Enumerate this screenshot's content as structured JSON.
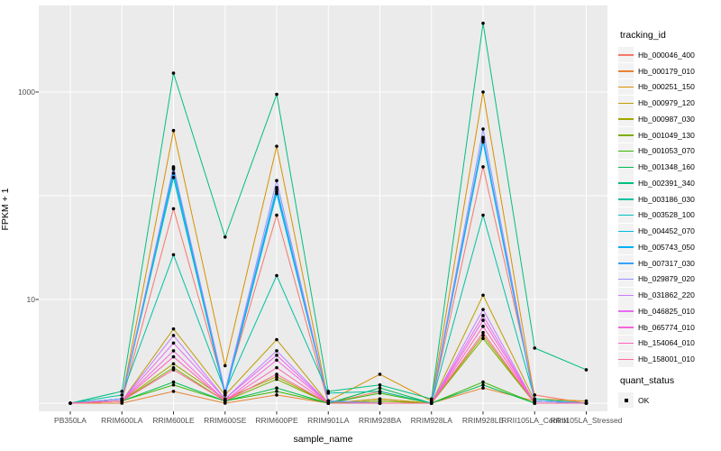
{
  "figure": {
    "y_axis": {
      "title": "FPKM + 1",
      "tick_labels": [
        "1000",
        "10"
      ]
    },
    "x_axis": {
      "title": "sample_name"
    },
    "legend": {
      "tracking_title": "tracking_id",
      "quant_title": "quant_status",
      "quant_ok_label": "OK"
    },
    "style": {
      "panel_bg": "#EBEBEB",
      "grid_color": "#FFFFFF",
      "axis_text_color": "#4D4D4D",
      "tick_mark_color": "#333333",
      "point_color": "#000000",
      "legend_key_bg": "#F2F2F2"
    }
  },
  "chart_data": {
    "type": "line",
    "title": "",
    "xlabel": "sample_name",
    "ylabel": "FPKM + 1",
    "y_scale": "log10",
    "ylim": [
      1,
      7000
    ],
    "y_ticks_labeled": [
      10,
      1000
    ],
    "y_gridlines": [
      1,
      10,
      100,
      1000
    ],
    "grid": true,
    "legend_title": "tracking_id",
    "legend_position": "right",
    "point_legend": {
      "title": "quant_status",
      "items": [
        "OK"
      ]
    },
    "categories": [
      "PB350LA",
      "RRIM600LA",
      "RRIM600LE",
      "RRIM600SE",
      "RRIM600PE",
      "RRIM901LA",
      "RRIM928BA",
      "RRIM928LA",
      "RRIM928LE",
      "RRII105LA_Control",
      "RRII105LA_Stressed"
    ],
    "series": [
      {
        "name": "Hb_000046_400",
        "color": "#F8766D",
        "values": [
          1,
          1.05,
          75,
          1.3,
          65,
          1,
          1.3,
          1,
          190,
          1.2,
          1
        ]
      },
      {
        "name": "Hb_000179_010",
        "color": "#EA8331",
        "values": [
          1,
          1,
          1.3,
          1,
          1.2,
          1,
          1.1,
          1,
          1.4,
          1.05,
          1
        ]
      },
      {
        "name": "Hb_000251_150",
        "color": "#D89000",
        "values": [
          1,
          1.1,
          425,
          2.3,
          300,
          1.05,
          1.9,
          1.05,
          1000,
          1.1,
          1.05
        ]
      },
      {
        "name": "Hb_000979_120",
        "color": "#C09B00",
        "values": [
          1,
          1.05,
          5.2,
          1.2,
          4.1,
          1,
          1.1,
          1,
          11,
          1.05,
          1
        ]
      },
      {
        "name": "Hb_000987_030",
        "color": "#A3A500",
        "values": [
          1,
          1.05,
          2.4,
          1.1,
          1.8,
          1,
          1.05,
          1,
          4.5,
          1,
          1
        ]
      },
      {
        "name": "Hb_001049_130",
        "color": "#7CAE00",
        "values": [
          1,
          1.05,
          2.2,
          1.05,
          1.7,
          1,
          1.05,
          1,
          4.2,
          1,
          1
        ]
      },
      {
        "name": "Hb_001053_070",
        "color": "#39B600",
        "values": [
          1,
          1.05,
          1.5,
          1.05,
          1.3,
          1,
          1.25,
          1,
          1.6,
          1,
          1
        ]
      },
      {
        "name": "Hb_001348_160",
        "color": "#00BB4E",
        "values": [
          1,
          1.05,
          1.6,
          1.05,
          1.4,
          1,
          1.4,
          1,
          1.5,
          1,
          1
        ]
      },
      {
        "name": "Hb_002391_340",
        "color": "#00BF7D",
        "values": [
          1,
          1.3,
          1520,
          40,
          950,
          1.3,
          1.5,
          1.1,
          4600,
          3.4,
          2.1
        ]
      },
      {
        "name": "Hb_003186_030",
        "color": "#00C1A3",
        "values": [
          1,
          1.2,
          27,
          1.3,
          17,
          1.25,
          1.3,
          1,
          65,
          1.1,
          1
        ]
      },
      {
        "name": "Hb_003528_100",
        "color": "#00BFC4",
        "values": [
          1,
          1.1,
          150,
          1.2,
          105,
          1.05,
          1,
          1,
          330,
          1.05,
          1
        ]
      },
      {
        "name": "Hb_004452_070",
        "color": "#00BAE0",
        "values": [
          1,
          1.1,
          165,
          1.2,
          110,
          1.05,
          1,
          1,
          345,
          1.05,
          1
        ]
      },
      {
        "name": "Hb_005743_050",
        "color": "#00B0F6",
        "values": [
          1,
          1.1,
          180,
          1.25,
          115,
          1.05,
          1,
          1,
          355,
          1.05,
          1
        ]
      },
      {
        "name": "Hb_007317_030",
        "color": "#35A2FF",
        "values": [
          1,
          1.1,
          185,
          1.25,
          120,
          1.05,
          1,
          1,
          365,
          1.05,
          1
        ]
      },
      {
        "name": "Hb_029879_020",
        "color": "#9590FF",
        "values": [
          1,
          1.1,
          190,
          1.3,
          140,
          1.05,
          1,
          1,
          440,
          1.05,
          1
        ]
      },
      {
        "name": "Hb_031862_220",
        "color": "#C77CFF",
        "values": [
          1,
          1.05,
          4.5,
          1.1,
          3.2,
          1,
          1,
          1,
          8,
          1,
          1
        ]
      },
      {
        "name": "Hb_046825_010",
        "color": "#E76BF3",
        "values": [
          1,
          1.05,
          3.8,
          1.1,
          2.9,
          1,
          1,
          1,
          7,
          1,
          1
        ]
      },
      {
        "name": "Hb_065774_010",
        "color": "#FA62DB",
        "values": [
          1,
          1.05,
          3.2,
          1.05,
          2.6,
          1,
          1,
          1,
          6.3,
          1,
          1
        ]
      },
      {
        "name": "Hb_154064_010",
        "color": "#FF62BC",
        "values": [
          1,
          1.05,
          2.8,
          1.05,
          2.2,
          1,
          1,
          1,
          5.5,
          1,
          1
        ]
      },
      {
        "name": "Hb_158001_010",
        "color": "#FF6A98",
        "values": [
          1,
          1.05,
          2.1,
          1.05,
          1.9,
          1,
          1,
          1,
          4.8,
          1,
          1
        ]
      }
    ]
  }
}
